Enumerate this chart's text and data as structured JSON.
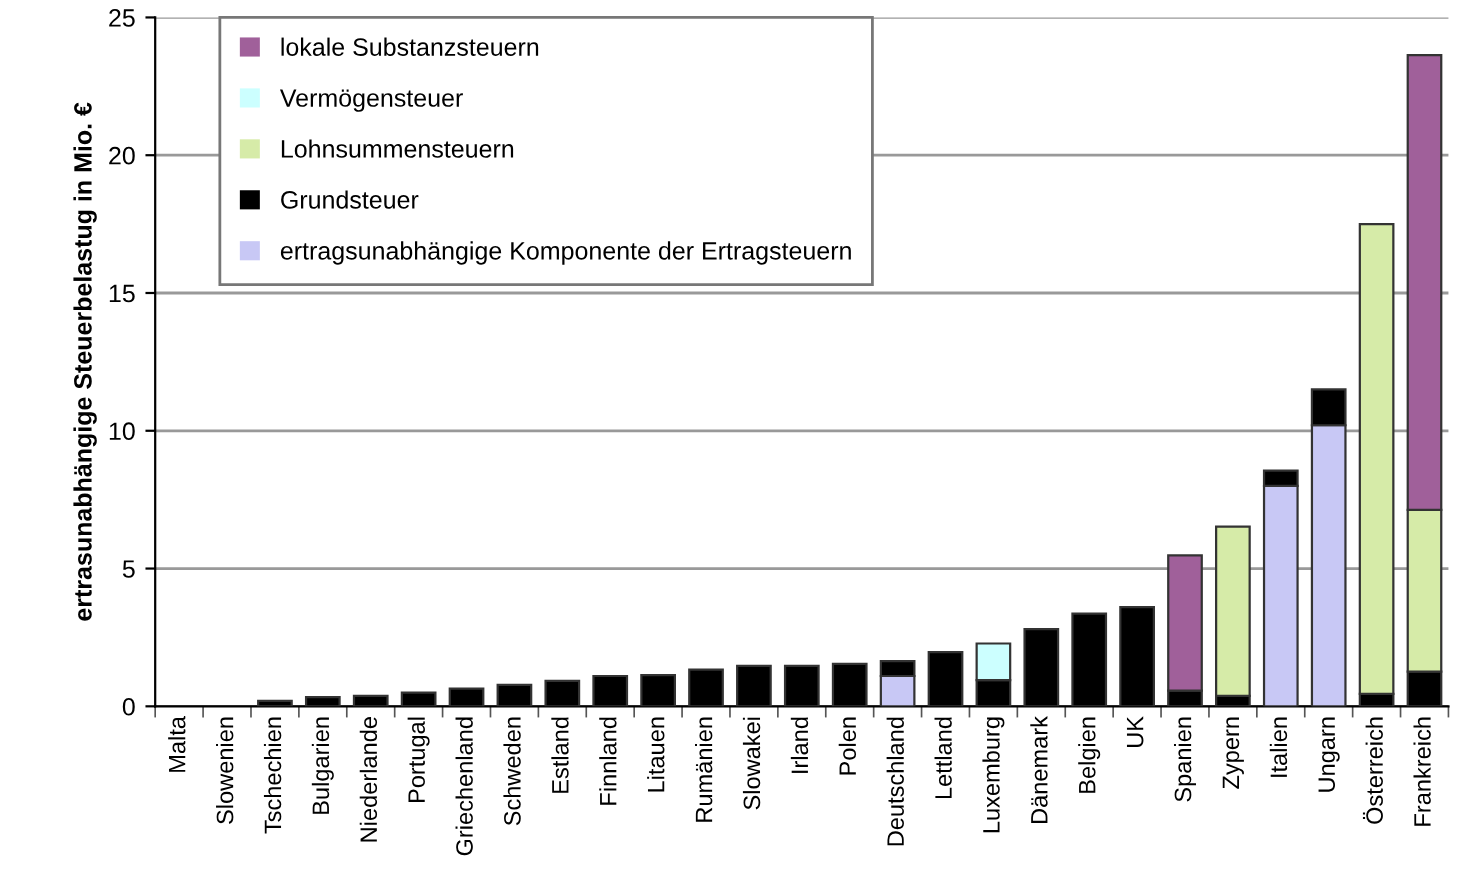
{
  "chart_data": {
    "type": "bar",
    "stacked": true,
    "ylabel": "ertrasunabhängige Steuerbelastug in Mio. €",
    "categories": [
      "Malta",
      "Slowenien",
      "Tschechien",
      "Bulgarien",
      "Niederlande",
      "Portugal",
      "Griechenland",
      "Schweden",
      "Estland",
      "Finnland",
      "Litauen",
      "Rumänien",
      "Slowakei",
      "Irland",
      "Polen",
      "Deutschland",
      "Lettland",
      "Luxemburg",
      "Dänemark",
      "Belgien",
      "UK",
      "Spanien",
      "Zypern",
      "Italien",
      "Ungarn",
      "Österreich",
      "Frankreich"
    ],
    "series": [
      {
        "name": "ertragsunabhängige Komponente der Ertragsteuern",
        "color": "#c8c8f5",
        "values": [
          0,
          0,
          0,
          0,
          0,
          0,
          0,
          0,
          0,
          0,
          0,
          0,
          0,
          0,
          0,
          1.1,
          0,
          0,
          0,
          0,
          0,
          0,
          0,
          8.0,
          10.2,
          0,
          0
        ]
      },
      {
        "name": "Grundsteuer",
        "color": "#000000",
        "values": [
          0,
          0,
          0.2,
          0.33,
          0.38,
          0.5,
          0.64,
          0.78,
          0.92,
          1.1,
          1.13,
          1.33,
          1.47,
          1.47,
          1.54,
          0.54,
          1.97,
          0.95,
          2.8,
          3.36,
          3.6,
          0.57,
          0.38,
          0.55,
          1.3,
          0.45,
          1.26
        ]
      },
      {
        "name": "Lohnsummensteuern",
        "color": "#d6eba8",
        "values": [
          0,
          0,
          0,
          0,
          0,
          0,
          0,
          0,
          0,
          0,
          0,
          0,
          0,
          0,
          0,
          0,
          0,
          0,
          0,
          0,
          0,
          0,
          6.14,
          0,
          0,
          17.05,
          5.87
        ]
      },
      {
        "name": "Vermögensteuer",
        "color": "#ccffff",
        "values": [
          0,
          0,
          0,
          0,
          0,
          0,
          0,
          0,
          0,
          0,
          0,
          0,
          0,
          0,
          0,
          0,
          0,
          1.33,
          0,
          0,
          0,
          0,
          0,
          0,
          0,
          0,
          0
        ]
      },
      {
        "name": "lokale Substanzsteuern",
        "color": "#a0609a",
        "values": [
          0,
          0,
          0,
          0,
          0,
          0,
          0,
          0,
          0,
          0,
          0,
          0,
          0,
          0,
          0,
          0,
          0,
          0,
          0,
          0,
          0,
          4.91,
          0,
          0,
          0,
          0,
          16.5
        ]
      }
    ],
    "ylim": [
      0,
      25
    ],
    "yticks": [
      0,
      5,
      10,
      15,
      20,
      25
    ],
    "grid": "y",
    "legend": "top left"
  }
}
